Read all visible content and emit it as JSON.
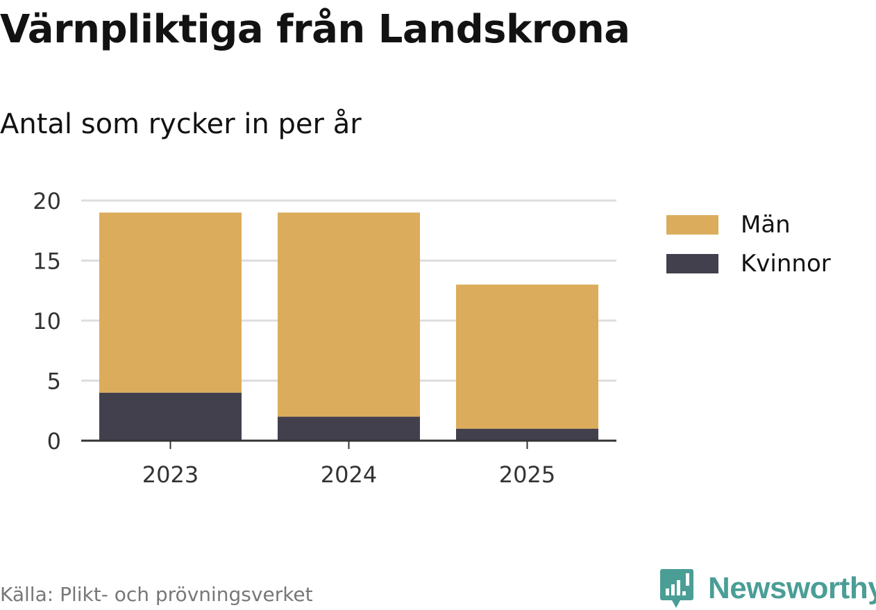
{
  "title": "Värnpliktiga från Landskrona",
  "subtitle": "Antal som rycker in per år",
  "source": "Källa: Plikt- och prövningsverket",
  "logo": {
    "text": "Newsworthy",
    "icon": "newsworthy-logo-icon",
    "color": "#4a9e96"
  },
  "colors": {
    "man": "#dbac5b",
    "kvinnor": "#42404d",
    "grid": "#dddddd",
    "axis": "#333333"
  },
  "chart_data": {
    "type": "bar",
    "stacked": true,
    "categories": [
      "2023",
      "2024",
      "2025"
    ],
    "series": [
      {
        "name": "Kvinnor",
        "values": [
          4,
          2,
          1
        ],
        "color": "#42404d"
      },
      {
        "name": "Män",
        "values": [
          15,
          17,
          12
        ],
        "color": "#dbac5b"
      }
    ],
    "ylim": [
      0,
      20
    ],
    "yticks": [
      "0",
      "5",
      "10",
      "15",
      "20"
    ],
    "grid": true,
    "legend": "right",
    "legend_items": [
      {
        "name": "Män",
        "color": "#dbac5b"
      },
      {
        "name": "Kvinnor",
        "color": "#42404d"
      }
    ]
  }
}
